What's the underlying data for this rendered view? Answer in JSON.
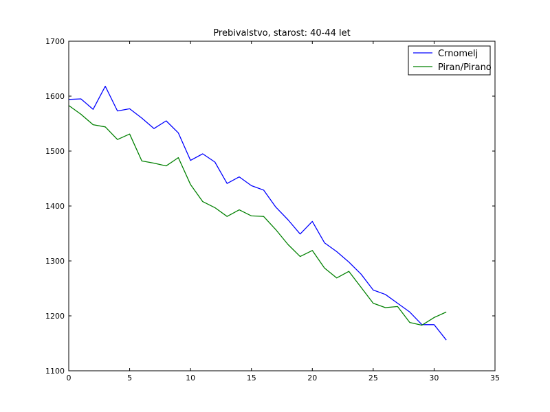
{
  "chart_data": {
    "type": "line",
    "title": "Prebivalstvo, starost: 40-44 let",
    "xlabel": "",
    "ylabel": "",
    "xlim": [
      0,
      35
    ],
    "ylim": [
      1100,
      1700
    ],
    "x_ticks": [
      0,
      5,
      10,
      15,
      20,
      25,
      30,
      35
    ],
    "y_ticks": [
      1100,
      1200,
      1300,
      1400,
      1500,
      1600,
      1700
    ],
    "x_tick_labels": [
      "0",
      "5",
      "10",
      "15",
      "20",
      "25",
      "30",
      "35"
    ],
    "y_tick_labels": [
      "1100",
      "1200",
      "1300",
      "1400",
      "1500",
      "1600",
      "1700"
    ],
    "grid": false,
    "legend_position": "top-right",
    "x": [
      0,
      1,
      2,
      3,
      4,
      5,
      6,
      7,
      8,
      9,
      10,
      11,
      12,
      13,
      14,
      15,
      16,
      17,
      18,
      19,
      20,
      21,
      22,
      23,
      24,
      25,
      26,
      27,
      28,
      29,
      30,
      31
    ],
    "series": [
      {
        "name": "Crnomelj",
        "color": "#0000ff",
        "values": [
          1594,
          1595,
          1576,
          1618,
          1573,
          1577,
          1560,
          1541,
          1555,
          1533,
          1483,
          1495,
          1480,
          1441,
          1453,
          1437,
          1429,
          1398,
          1375,
          1349,
          1372,
          1333,
          1317,
          1298,
          1276,
          1247,
          1239,
          1223,
          1207,
          1184,
          1184,
          1156
        ]
      },
      {
        "name": "Piran/Pirano",
        "color": "#008000",
        "values": [
          1583,
          1567,
          1548,
          1544,
          1521,
          1531,
          1482,
          1478,
          1473,
          1488,
          1439,
          1408,
          1397,
          1381,
          1393,
          1382,
          1381,
          1357,
          1330,
          1308,
          1319,
          1287,
          1269,
          1281,
          1252,
          1223,
          1215,
          1217,
          1188,
          1183,
          1197,
          1207
        ]
      }
    ]
  }
}
